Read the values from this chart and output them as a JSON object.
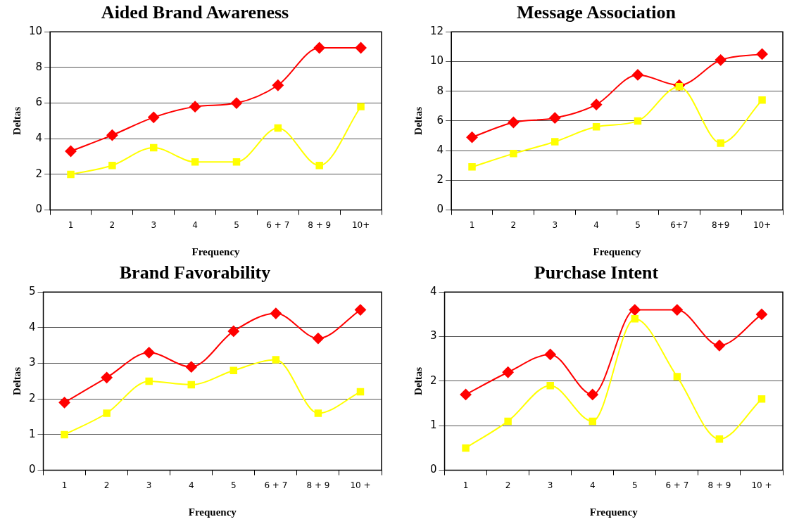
{
  "chart_data": [
    {
      "type": "line",
      "title": "Aided Brand Awareness",
      "xlabel": "Frequency",
      "ylabel": "Deltas",
      "categories": [
        "1",
        "2",
        "3",
        "4",
        "5",
        "6 + 7",
        "8 + 9",
        "10+"
      ],
      "series": [
        {
          "color": "#ff0000",
          "marker": "diamond",
          "values": [
            3.3,
            4.2,
            5.2,
            5.8,
            6.0,
            7.0,
            9.1,
            9.1
          ]
        },
        {
          "color": "#ffff00",
          "marker": "square",
          "values": [
            2.0,
            2.5,
            3.5,
            2.7,
            2.7,
            4.6,
            2.5,
            5.8
          ]
        }
      ],
      "ylim": [
        0,
        10
      ],
      "yticks": [
        0,
        2,
        4,
        6,
        8,
        10
      ],
      "grid": "y",
      "legend": false
    },
    {
      "type": "line",
      "title": "Message Association",
      "xlabel": "Frequency",
      "ylabel": "Deltas",
      "categories": [
        "1",
        "2",
        "3",
        "4",
        "5",
        "6+7",
        "8+9",
        "10+"
      ],
      "series": [
        {
          "color": "#ff0000",
          "marker": "diamond",
          "values": [
            4.9,
            5.9,
            6.2,
            7.1,
            9.1,
            8.4,
            10.1,
            10.5
          ]
        },
        {
          "color": "#ffff00",
          "marker": "square",
          "values": [
            2.9,
            3.8,
            4.6,
            5.6,
            6.0,
            8.3,
            4.5,
            7.4
          ]
        }
      ],
      "ylim": [
        0,
        12
      ],
      "yticks": [
        0,
        2,
        4,
        6,
        8,
        10,
        12
      ],
      "grid": "y",
      "legend": false
    },
    {
      "type": "line",
      "title": "Brand Favorability",
      "xlabel": "Frequency",
      "ylabel": "Deltas",
      "categories": [
        "1",
        "2",
        "3",
        "4",
        "5",
        "6 + 7",
        "8 + 9",
        "10 +"
      ],
      "series": [
        {
          "color": "#ff0000",
          "marker": "diamond",
          "values": [
            1.9,
            2.6,
            3.3,
            2.9,
            3.9,
            4.4,
            3.7,
            4.5
          ]
        },
        {
          "color": "#ffff00",
          "marker": "square",
          "values": [
            1.0,
            1.6,
            2.5,
            2.4,
            2.8,
            3.1,
            1.6,
            2.2
          ]
        }
      ],
      "ylim": [
        0,
        5
      ],
      "yticks": [
        0,
        1,
        2,
        3,
        4,
        5
      ],
      "grid": "y",
      "legend": false
    },
    {
      "type": "line",
      "title": "Purchase Intent",
      "xlabel": "Frequency",
      "ylabel": "Deltas",
      "categories": [
        "1",
        "2",
        "3",
        "4",
        "5",
        "6 + 7",
        "8 + 9",
        "10 +"
      ],
      "series": [
        {
          "color": "#ff0000",
          "marker": "diamond",
          "values": [
            1.7,
            2.2,
            2.6,
            1.7,
            3.6,
            3.6,
            2.8,
            3.5
          ]
        },
        {
          "color": "#ffff00",
          "marker": "square",
          "values": [
            0.5,
            1.1,
            1.9,
            1.1,
            3.4,
            2.1,
            0.7,
            1.6
          ]
        }
      ],
      "ylim": [
        0,
        4
      ],
      "yticks": [
        0,
        1,
        2,
        3,
        4
      ],
      "grid": "y",
      "legend": false
    }
  ]
}
